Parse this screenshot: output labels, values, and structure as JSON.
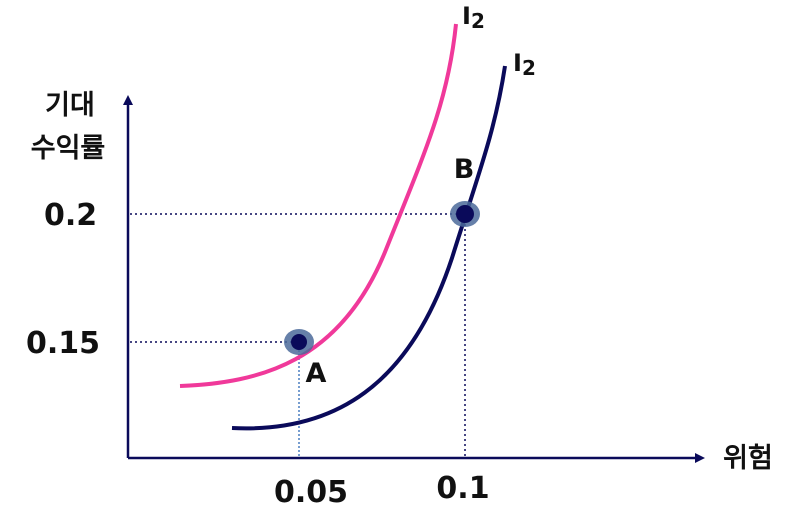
{
  "diagram": {
    "y_axis_title": [
      "기대",
      "수익률"
    ],
    "x_axis_title": "위험",
    "y_ticks": [
      "0.2",
      "0.15"
    ],
    "x_ticks": [
      "0.05",
      "0.1"
    ],
    "curves": [
      {
        "label": "I",
        "subscript": "2",
        "color": "#f0399a"
      },
      {
        "label": "I",
        "subscript": "2",
        "color": "#0a0a5a"
      }
    ],
    "points": [
      {
        "label": "A",
        "x": "0.05",
        "y": "0.15"
      },
      {
        "label": "B",
        "x": "0.1",
        "y": "0.2"
      }
    ],
    "colors": {
      "axis": "#0a0a5a",
      "guide": "#0a0a5a",
      "guide_a_vertical": "#4a7fc0",
      "point_fill": "#0a0a5a",
      "point_halo": "#4b6a9a"
    }
  }
}
